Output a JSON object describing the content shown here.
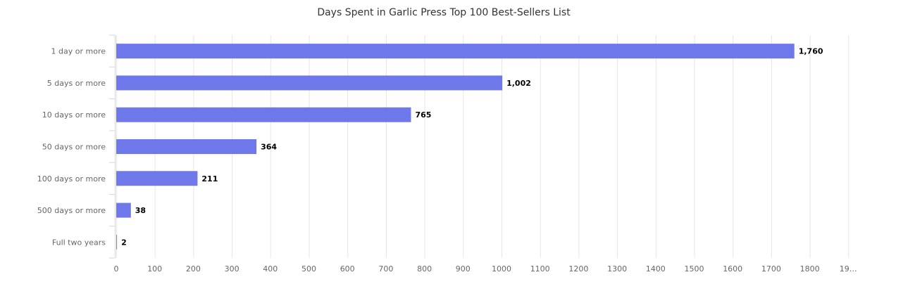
{
  "chart_data": {
    "type": "bar",
    "orientation": "horizontal",
    "title": "Days Spent in Garlic Press Top 100 Best-Sellers List",
    "categories": [
      "1 day or more",
      "5 days or more",
      "10 days or more",
      "50 days or more",
      "100 days or more",
      "500 days or more",
      "Full two years"
    ],
    "values": [
      1760,
      1002,
      765,
      364,
      211,
      38,
      2
    ],
    "value_labels": [
      "1,760",
      "1,002",
      "765",
      "364",
      "211",
      "38",
      "2"
    ],
    "x_ticks": [
      "0",
      "100",
      "200",
      "300",
      "400",
      "500",
      "600",
      "700",
      "800",
      "900",
      "1000",
      "1100",
      "1200",
      "1300",
      "1400",
      "1500",
      "1600",
      "1700",
      "1800",
      "19…"
    ],
    "xlim": [
      0,
      1900
    ],
    "grid": true,
    "bar_color": "#6f78ea",
    "legend": false
  }
}
